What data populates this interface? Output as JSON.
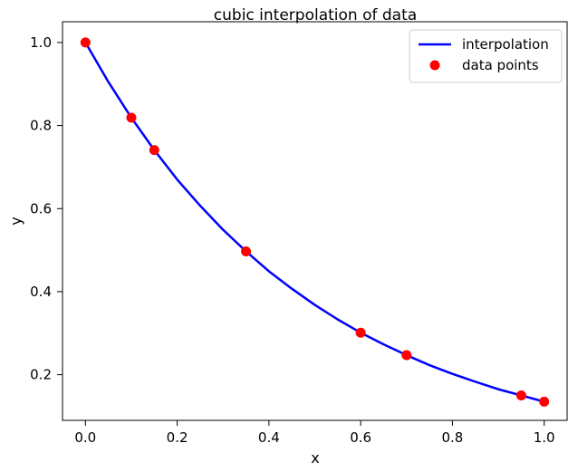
{
  "chart_data": {
    "type": "line",
    "title": "cubic interpolation of data",
    "xlabel": "x",
    "ylabel": "y",
    "xlim": [
      -0.05,
      1.05
    ],
    "ylim": [
      0.09,
      1.05
    ],
    "xticks": [
      0.0,
      0.2,
      0.4,
      0.6,
      0.8,
      1.0
    ],
    "xtick_labels": [
      "0.0",
      "0.2",
      "0.4",
      "0.6",
      "0.8",
      "1.0"
    ],
    "yticks": [
      0.2,
      0.4,
      0.6,
      0.8,
      1.0
    ],
    "ytick_labels": [
      "0.2",
      "0.4",
      "0.6",
      "0.8",
      "1.0"
    ],
    "grid": false,
    "legend_position": "top-right",
    "series": [
      {
        "name": "interpolation",
        "kind": "line",
        "color": "#0000ff",
        "x": [
          0.0,
          0.05,
          0.1,
          0.15,
          0.2,
          0.25,
          0.3,
          0.35,
          0.4,
          0.45,
          0.5,
          0.55,
          0.6,
          0.65,
          0.7,
          0.75,
          0.8,
          0.85,
          0.9,
          0.95,
          1.0
        ],
        "y": [
          1.0,
          0.905,
          0.819,
          0.741,
          0.67,
          0.607,
          0.549,
          0.497,
          0.449,
          0.407,
          0.368,
          0.333,
          0.301,
          0.273,
          0.247,
          0.223,
          0.202,
          0.183,
          0.165,
          0.15,
          0.135
        ]
      },
      {
        "name": "data points",
        "kind": "scatter",
        "color": "#ff0000",
        "x": [
          0.0,
          0.1,
          0.15,
          0.35,
          0.6,
          0.7,
          0.95,
          1.0
        ],
        "y": [
          1.0,
          0.819,
          0.741,
          0.497,
          0.301,
          0.247,
          0.15,
          0.135
        ]
      }
    ]
  }
}
